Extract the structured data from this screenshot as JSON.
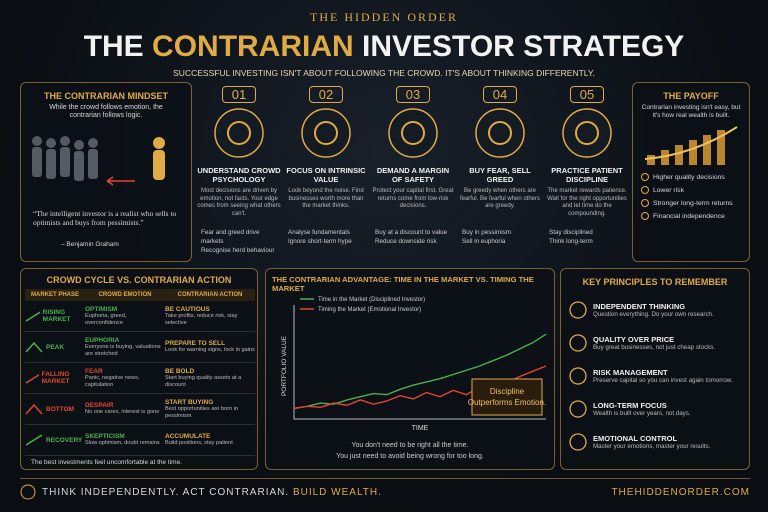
{
  "header": {
    "brand": "THE HIDDEN ORDER",
    "title_pre": "THE",
    "title_accent": "CONTRARIAN",
    "title_post": "INVESTOR STRATEGY",
    "subtitle": "SUCCESSFUL INVESTING ISN'T ABOUT FOLLOWING THE CROWD. IT'S ABOUT THINKING DIFFERENTLY."
  },
  "mindset": {
    "title": "THE CONTRARIAN MINDSET",
    "text": "While the crowd follows emotion, the contrarian follows logic.",
    "quote": "“The intelligent investor is a realist who sells to optimists and buys from pessimists.”",
    "author": "– Benjamin Graham"
  },
  "steps": [
    {
      "number": "01",
      "title": "UNDERSTAND CROWD PSYCHOLOGY",
      "text": "Most decisions are driven by emotion, not facts. Your edge comes from seeing what others can't.",
      "bullets": [
        "Fear and greed drive markets",
        "Recognise herd behaviour"
      ]
    },
    {
      "number": "02",
      "title": "FOCUS ON INTRINSIC VALUE",
      "text": "Look beyond the noise. Find businesses worth more than the market thinks.",
      "bullets": [
        "Analyse fundamentals",
        "Ignore short-term hype"
      ]
    },
    {
      "number": "03",
      "title": "DEMAND A MARGIN OF SAFETY",
      "text": "Protect your capital first. Great returns come from low-risk decisions.",
      "bullets": [
        "Buy at a discount to value",
        "Reduce downside risk"
      ]
    },
    {
      "number": "04",
      "title": "BUY FEAR, SELL GREED",
      "text": "Be greedy when others are fearful. Be fearful when others are greedy.",
      "bullets": [
        "Buy in pessimism",
        "Sell in euphoria"
      ]
    },
    {
      "number": "05",
      "title": "PRACTICE PATIENT DISCIPLINE",
      "text": "The market rewards patience. Wait for the right opportunities and let time do the compounding.",
      "bullets": [
        "Stay disciplined",
        "Think long-term"
      ]
    }
  ],
  "payoff": {
    "title": "THE PAYOFF",
    "text": "Contrarian investing isn't easy, but it's how real wealth is built.",
    "bullets": [
      "Higher quality decisions",
      "Lower risk",
      "Stronger long-term returns",
      "Financial independence"
    ]
  },
  "cycle": {
    "title": "CROWD CYCLE VS. CONTRARIAN ACTION",
    "columns": [
      "MARKET PHASE",
      "CROWD EMOTION",
      "CONTRARIAN ACTION"
    ],
    "rows": [
      {
        "phase": "RISING MARKET",
        "emotion": "OPTIMISM",
        "emotion_text": "Euphoria, greed, overconfidence",
        "action": "BE CAUTIOUS",
        "action_text": "Take profits, reduce risk, stay selective"
      },
      {
        "phase": "PEAK",
        "emotion": "EUPHORIA",
        "emotion_text": "Everyone is buying, valuations are stretched",
        "action": "PREPARE TO SELL",
        "action_text": "Look for warning signs, lock in gains"
      },
      {
        "phase": "FALLING MARKET",
        "emotion": "FEAR",
        "emotion_text": "Panic, negative news, capitulation",
        "action": "BE BOLD",
        "action_text": "Start buying quality assets at a discount"
      },
      {
        "phase": "BOTTOM",
        "emotion": "DESPAIR",
        "emotion_text": "No one cares, interest is gone",
        "action": "START BUYING",
        "action_text": "Best opportunities are born in pessimism"
      },
      {
        "phase": "RECOVERY",
        "emotion": "SKEPTICISM",
        "emotion_text": "Slow optimism, doubt remains",
        "action": "ACCUMULATE",
        "action_text": "Build positions, stay patient"
      }
    ],
    "note": "The best investments feel uncomfortable at the time."
  },
  "chart_data": {
    "type": "line",
    "title": "THE CONTRARIAN ADVANTAGE: TIME IN THE MARKET VS. TIMING THE MARKET",
    "x_label": "TIME",
    "y_label": "PORTFOLIO VALUE",
    "x": [
      1,
      2,
      3,
      4,
      5,
      6,
      7,
      8,
      9,
      10,
      11,
      12,
      13,
      14,
      15,
      16,
      17,
      18,
      19,
      20
    ],
    "xlim": [
      1,
      20
    ],
    "ylim": [
      0,
      100
    ],
    "series": [
      {
        "name": "Time in the Market (Disciplined Investor)",
        "color": "#4caf50",
        "values": [
          10,
          12,
          15,
          14,
          18,
          21,
          24,
          23,
          28,
          32,
          35,
          38,
          42,
          46,
          50,
          55,
          60,
          66,
          72,
          80
        ]
      },
      {
        "name": "Timing the Market (Emotional Investor)",
        "color": "#e0452f",
        "values": [
          10,
          12,
          11,
          15,
          13,
          18,
          14,
          17,
          22,
          19,
          25,
          21,
          27,
          23,
          30,
          26,
          34,
          40,
          45,
          50
        ]
      }
    ],
    "annotation": "Discipline Outperforms Emotion.",
    "caption": [
      "You don't need to be right all the time.",
      "You just need to avoid being wrong for too long."
    ]
  },
  "principles": {
    "title": "KEY PRINCIPLES TO REMEMBER",
    "items": [
      {
        "title": "INDEPENDENT THINKING",
        "text": "Question everything. Do your own research."
      },
      {
        "title": "QUALITY OVER PRICE",
        "text": "Buy great businesses, not just cheap stocks."
      },
      {
        "title": "RISK MANAGEMENT",
        "text": "Preserve capital so you can invest again tomorrow."
      },
      {
        "title": "LONG-TERM FOCUS",
        "text": "Wealth is built over years, not days."
      },
      {
        "title": "EMOTIONAL CONTROL",
        "text": "Master your emotions, master your results."
      }
    ]
  },
  "footer": {
    "tagline": "THINK INDEPENDENTLY. ACT CONTRARIAN.",
    "tagline_accent": "BUILD WEALTH.",
    "url": "THEHIDDENORDER.COM"
  }
}
